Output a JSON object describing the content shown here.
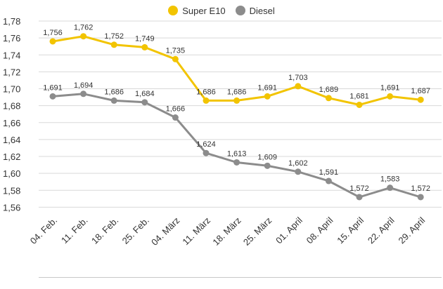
{
  "chart_data": {
    "type": "line",
    "title": "",
    "xlabel": "",
    "ylabel": "",
    "categories": [
      "04. Feb.",
      "11. Feb.",
      "18. Feb.",
      "25. Feb.",
      "04. März",
      "11. März",
      "18. März",
      "25. März",
      "01. April",
      "08. April",
      "15. April",
      "22. April",
      "29. April"
    ],
    "series": [
      {
        "name": "Super E10",
        "color": "#f2c400",
        "values": [
          1.756,
          1.762,
          1.752,
          1.749,
          1.735,
          1.686,
          1.686,
          1.691,
          1.703,
          1.689,
          1.681,
          1.691,
          1.687
        ],
        "labels": [
          "1,756",
          "1,762",
          "1,752",
          "1,749",
          "1,735",
          "1,686",
          "1,686",
          "1,691",
          "1,703",
          "1,689",
          "1,681",
          "1,691",
          "1,687"
        ]
      },
      {
        "name": "Diesel",
        "color": "#8c8c8c",
        "values": [
          1.691,
          1.694,
          1.686,
          1.684,
          1.666,
          1.624,
          1.613,
          1.609,
          1.602,
          1.591,
          1.572,
          1.583,
          1.572
        ],
        "labels": [
          "1,691",
          "1,694",
          "1,686",
          "1,684",
          "1,666",
          "1,624",
          "1,613",
          "1,609",
          "1,602",
          "1,591",
          "1,572",
          "1,583",
          "1,572"
        ]
      }
    ],
    "ylim": [
      1.55,
      1.78
    ],
    "yticks": [
      1.56,
      1.58,
      1.6,
      1.62,
      1.64,
      1.66,
      1.68,
      1.7,
      1.72,
      1.74,
      1.76,
      1.78
    ],
    "ytick_labels": [
      "1,56",
      "1,58",
      "1,60",
      "1,62",
      "1,64",
      "1,66",
      "1,68",
      "1,70",
      "1,72",
      "1,74",
      "1,76",
      "1,78"
    ],
    "grid": true,
    "legend_position": "top-center"
  }
}
